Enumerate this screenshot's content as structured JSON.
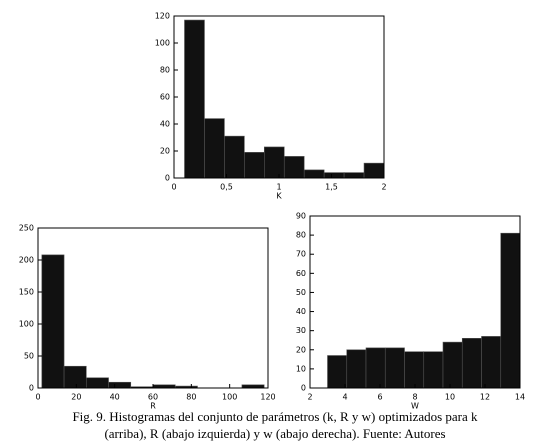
{
  "chart_data": [
    {
      "type": "histogram",
      "xlabel": "K",
      "bins": [
        0.1,
        0.29,
        0.48,
        0.67,
        0.86,
        1.05,
        1.24,
        1.43,
        1.62,
        1.81,
        2.0
      ],
      "values": [
        117,
        44,
        31,
        19,
        23,
        16,
        6,
        4,
        4,
        11
      ],
      "color": "#111111",
      "xlim": [
        0,
        2
      ],
      "xticks": [
        0,
        {
          "value": 0.5,
          "label": "0,5"
        },
        1,
        {
          "value": 1.5,
          "label": "1,5"
        },
        2
      ],
      "ylim": [
        0,
        120
      ],
      "yticks": [
        0,
        20,
        40,
        60,
        80,
        100,
        120
      ]
    },
    {
      "type": "histogram",
      "xlabel": "R",
      "bins": [
        2,
        13.6,
        25.2,
        36.8,
        48.4,
        60,
        71.6,
        83.2,
        94.8,
        106.4,
        118
      ],
      "values": [
        208,
        34,
        16,
        9,
        2,
        5,
        3,
        0,
        0,
        5
      ],
      "color": "#111111",
      "xlim": [
        0,
        120
      ],
      "xticks": [
        0,
        20,
        40,
        60,
        80,
        100,
        120
      ],
      "ylim": [
        0,
        250
      ],
      "yticks": [
        0,
        50,
        100,
        150,
        200,
        250
      ]
    },
    {
      "type": "histogram",
      "xlabel": "W",
      "bins": [
        3,
        4.1,
        5.2,
        6.3,
        7.4,
        8.5,
        9.6,
        10.7,
        11.8,
        12.9,
        14
      ],
      "values": [
        17,
        20,
        21,
        21,
        19,
        19,
        24,
        26,
        27,
        81
      ],
      "color": "#111111",
      "xlim": [
        2,
        14
      ],
      "xticks": [
        2,
        4,
        6,
        8,
        10,
        12,
        14
      ],
      "ylim": [
        0,
        90
      ],
      "yticks": [
        0,
        10,
        20,
        30,
        40,
        50,
        60,
        70,
        80,
        90
      ]
    }
  ],
  "caption": [
    "Fig. 9. Histogramas del conjunto de parámetros (k, R y w) optimizados para k",
    "(arriba), R (abajo izquierda) y w (abajo derecha). Fuente: Autores"
  ]
}
